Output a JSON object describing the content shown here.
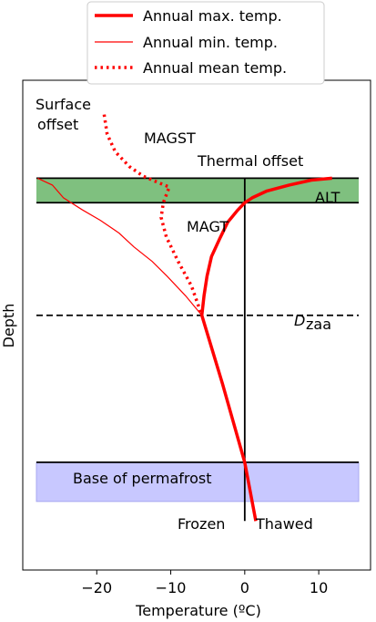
{
  "chart_data": {
    "type": "line",
    "xlabel": "Temperature (ºC)",
    "ylabel": "Depth",
    "xlim": [
      -30,
      17
    ],
    "xticks": [
      -20,
      -10,
      0,
      10
    ],
    "xtick_labels": [
      "−20",
      "−10",
      "0",
      "10"
    ],
    "legend": {
      "placement": "top-center",
      "entries": [
        "Annual max. temp.",
        "Annual min. temp.",
        "Annual mean temp."
      ]
    },
    "series": [
      {
        "name": "Annual max. temp.",
        "style": "solid-thick",
        "color": "#ff0000",
        "points": [
          [
            11.8,
            2
          ],
          [
            9,
            2.2
          ],
          [
            6,
            2.7
          ],
          [
            3,
            3.3
          ],
          [
            1,
            4.0
          ],
          [
            0,
            4.5
          ],
          [
            -1,
            5.3
          ],
          [
            -2.3,
            6.5
          ],
          [
            -3.4,
            8.2
          ],
          [
            -4.5,
            10.0
          ],
          [
            -5.1,
            12.0
          ],
          [
            -5.5,
            14.0
          ],
          [
            -5.8,
            16.0
          ],
          [
            -3,
            23.0
          ],
          [
            0,
            31.0
          ],
          [
            1.5,
            37.0
          ]
        ]
      },
      {
        "name": "Annual min. temp.",
        "style": "solid-thin",
        "color": "#ff0000",
        "points": [
          [
            -28,
            2
          ],
          [
            -26,
            2.7
          ],
          [
            -24.5,
            4
          ],
          [
            -22,
            5.2
          ],
          [
            -19.5,
            6.3
          ],
          [
            -17,
            7.6
          ],
          [
            -15,
            9.0
          ],
          [
            -12.5,
            10.5
          ],
          [
            -10.5,
            12.0
          ],
          [
            -8,
            14.0
          ],
          [
            -5.8,
            16.0
          ]
        ]
      },
      {
        "name": "Annual mean temp.",
        "style": "dotted",
        "color": "#ff0000",
        "points": [
          [
            -19,
            -4.5
          ],
          [
            -18.6,
            -2.5
          ],
          [
            -17.5,
            -0.7
          ],
          [
            -15.6,
            0.8
          ],
          [
            -13.7,
            1.8
          ],
          [
            -11.5,
            2.5
          ],
          [
            -10.2,
            2.9
          ],
          [
            -11.0,
            4.5
          ],
          [
            -11.3,
            6.0
          ],
          [
            -10.6,
            8.0
          ],
          [
            -9.0,
            10.5
          ],
          [
            -7.2,
            13.0
          ],
          [
            -5.8,
            16.0
          ]
        ]
      }
    ],
    "bands": [
      {
        "name": "ALT",
        "color": "#7fc07f",
        "depth_range": [
          2,
          4.5
        ]
      },
      {
        "name": "Base of permafrost",
        "color": "#c8c8ff",
        "depth_range": [
          31,
          35
        ]
      }
    ],
    "reference_lines": {
      "zero_vertical": {
        "x": 0,
        "depth_range": [
          2,
          37
        ]
      },
      "dzaa_depth": 16.0
    },
    "annotations": [
      "Surface",
      "offset",
      "MAGST",
      "Thermal offset",
      "ALT",
      "MAGT",
      "D",
      "zaa",
      "Base of permafrost",
      "Frozen",
      "Thawed"
    ],
    "depth_range": [
      -8,
      42
    ]
  }
}
